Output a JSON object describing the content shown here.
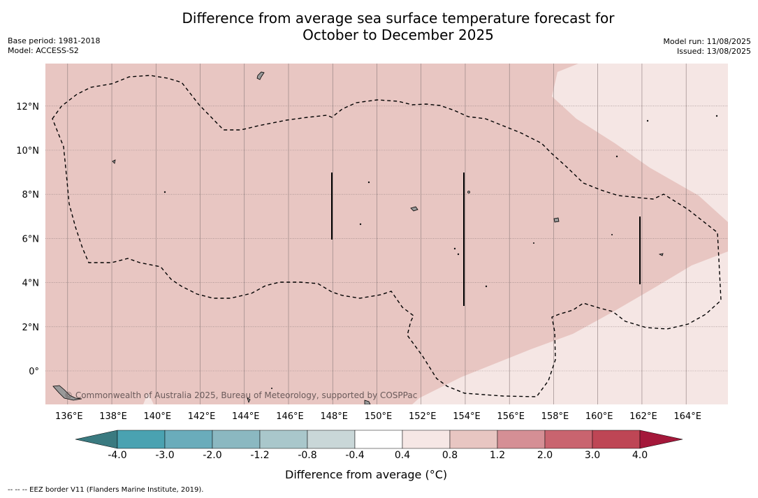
{
  "title": {
    "line1": "Difference from average sea surface temperature forecast for",
    "line2": "October to December 2025"
  },
  "meta": {
    "base_period": "Base period: 1981-2018",
    "model": "Model: ACCESS-S2",
    "model_run": "Model run: 11/08/2025",
    "issued": "Issued: 13/08/2025"
  },
  "map": {
    "lon_ticks": [
      "136°E",
      "138°E",
      "140°E",
      "142°E",
      "144°E",
      "146°E",
      "148°E",
      "150°E",
      "152°E",
      "154°E",
      "156°E",
      "158°E",
      "160°E",
      "162°E",
      "164°E"
    ],
    "lat_ticks": [
      "12°N",
      "10°N",
      "8°N",
      "6°N",
      "4°N",
      "2°N",
      "0°"
    ],
    "lon_values": [
      136,
      138,
      140,
      142,
      144,
      146,
      148,
      150,
      152,
      154,
      156,
      158,
      160,
      162,
      164
    ],
    "lat_values": [
      12,
      10,
      8,
      6,
      4,
      2,
      0
    ],
    "extent": {
      "lon": [
        135,
        166
      ],
      "lat": [
        -1.5,
        14
      ]
    },
    "credit": "© Commonwealth of Australia 2025, Bureau of Meteorology, supported by COSPPac",
    "fill_colors": {
      "warm_0_8_to_1_2": "#e8c6c2",
      "warm_0_4_to_0_8": "#f5e6e4"
    }
  },
  "colorbar": {
    "label": "Difference from average (°C)",
    "ticks": [
      "-4.0",
      "-3.0",
      "-2.0",
      "-1.2",
      "-0.8",
      "-0.4",
      "0.4",
      "0.8",
      "1.2",
      "2.0",
      "3.0",
      "4.0"
    ],
    "colors": [
      "#4aa2b1",
      "#6aacbb",
      "#8bb8c1",
      "#a9c7cb",
      "#c9d7d8",
      "#ffffff",
      "#f6e7e5",
      "#e8c6c2",
      "#d58f95",
      "#c9646f",
      "#be4655"
    ],
    "under_color": "#3a7a80",
    "over_color": "#a4183a"
  },
  "footer": "--  --  -- EEZ border V11 (Flanders Marine Institute, 2019)."
}
